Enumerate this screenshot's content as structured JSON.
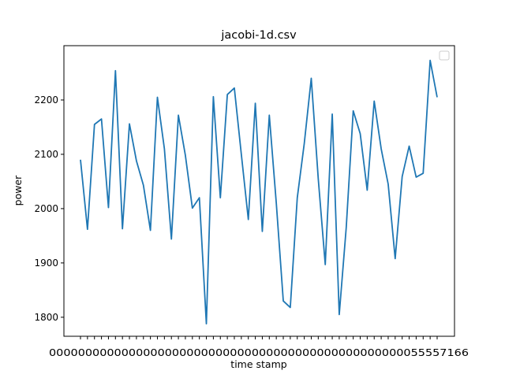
{
  "chart_data": {
    "type": "line",
    "title": "jacobi-1d.csv",
    "xlabel": "time stamp",
    "ylabel": "power",
    "ylim": [
      1765,
      2300
    ],
    "yticks": [
      1800,
      1900,
      2000,
      2100,
      2200
    ],
    "grid": false,
    "legend": "top-right",
    "line_color": "#1f77b4",
    "x_tick_text": "0000000000000000000000000000000000000000000000000055557166",
    "series": [
      {
        "values": [
          2090,
          1962,
          2155,
          2165,
          2002,
          2254,
          1963,
          2156,
          2088,
          2043,
          1960,
          2205,
          2110,
          1944,
          2172,
          2098,
          2001,
          2020,
          1788,
          2206,
          2020,
          2210,
          2222,
          2100,
          1980,
          2194,
          1958,
          2172,
          2010,
          1830,
          1818,
          2020,
          2120,
          2240,
          2055,
          1897,
          2174,
          1805,
          1965,
          2180,
          2138,
          2034,
          2198,
          2110,
          2045,
          1908,
          2059,
          2115,
          2058,
          2065,
          2273,
          2205
        ]
      }
    ]
  }
}
